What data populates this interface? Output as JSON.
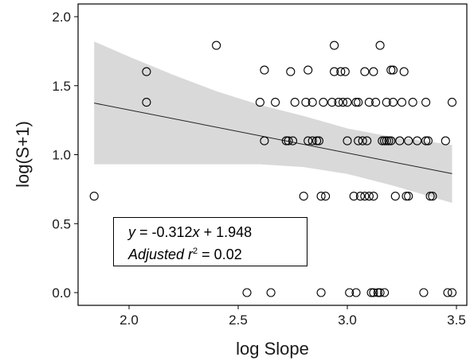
{
  "chart_data": {
    "type": "scatter",
    "xlabel": "log Slope",
    "ylabel": "log(S+1)",
    "xlim": [
      1.8,
      3.5
    ],
    "ylim": [
      -0.05,
      2.05
    ],
    "xticks": [
      "2.0",
      "2.5",
      "3.0",
      "3.5"
    ],
    "yticks": [
      "0.0",
      "0.5",
      "1.0",
      "1.5",
      "2.0"
    ],
    "grid": false,
    "points": [
      [
        1.84,
        0.699
      ],
      [
        2.08,
        1.602
      ],
      [
        2.08,
        1.38
      ],
      [
        2.4,
        1.792
      ],
      [
        2.54,
        0.0
      ],
      [
        2.6,
        1.38
      ],
      [
        2.62,
        1.613
      ],
      [
        2.62,
        1.1
      ],
      [
        2.65,
        0.0
      ],
      [
        2.67,
        1.38
      ],
      [
        2.72,
        1.1
      ],
      [
        2.73,
        1.1
      ],
      [
        2.74,
        1.602
      ],
      [
        2.75,
        1.1
      ],
      [
        2.76,
        1.38
      ],
      [
        2.8,
        0.699
      ],
      [
        2.81,
        1.38
      ],
      [
        2.82,
        1.1
      ],
      [
        2.82,
        1.613
      ],
      [
        2.84,
        1.38
      ],
      [
        2.84,
        1.1
      ],
      [
        2.86,
        1.1
      ],
      [
        2.87,
        1.1
      ],
      [
        2.88,
        0.0
      ],
      [
        2.88,
        0.699
      ],
      [
        2.89,
        1.38
      ],
      [
        2.9,
        0.699
      ],
      [
        2.93,
        1.38
      ],
      [
        2.94,
        1.602
      ],
      [
        2.94,
        1.792
      ],
      [
        2.96,
        1.38
      ],
      [
        2.97,
        1.602
      ],
      [
        2.98,
        1.38
      ],
      [
        2.99,
        1.602
      ],
      [
        3.0,
        1.38
      ],
      [
        3.0,
        1.1
      ],
      [
        3.01,
        0.0
      ],
      [
        3.03,
        0.699
      ],
      [
        3.04,
        0.0
      ],
      [
        3.04,
        1.38
      ],
      [
        3.05,
        1.38
      ],
      [
        3.05,
        1.1
      ],
      [
        3.06,
        0.699
      ],
      [
        3.07,
        1.1
      ],
      [
        3.08,
        1.602
      ],
      [
        3.08,
        0.699
      ],
      [
        3.09,
        1.1
      ],
      [
        3.1,
        0.699
      ],
      [
        3.1,
        1.38
      ],
      [
        3.11,
        0.0
      ],
      [
        3.12,
        0.0
      ],
      [
        3.12,
        1.602
      ],
      [
        3.12,
        0.699
      ],
      [
        3.13,
        1.38
      ],
      [
        3.14,
        0.0
      ],
      [
        3.15,
        0.0
      ],
      [
        3.15,
        1.792
      ],
      [
        3.16,
        1.1
      ],
      [
        3.17,
        0.0
      ],
      [
        3.17,
        1.1
      ],
      [
        3.18,
        1.38
      ],
      [
        3.18,
        1.1
      ],
      [
        3.19,
        1.1
      ],
      [
        3.2,
        1.613
      ],
      [
        3.2,
        1.1
      ],
      [
        3.21,
        1.613
      ],
      [
        3.21,
        1.38
      ],
      [
        3.22,
        0.699
      ],
      [
        3.24,
        1.1
      ],
      [
        3.25,
        1.38
      ],
      [
        3.26,
        1.602
      ],
      [
        3.27,
        0.699
      ],
      [
        3.28,
        1.1
      ],
      [
        3.28,
        0.699
      ],
      [
        3.3,
        1.38
      ],
      [
        3.32,
        1.1
      ],
      [
        3.35,
        0.0
      ],
      [
        3.36,
        1.38
      ],
      [
        3.36,
        1.1
      ],
      [
        3.37,
        1.1
      ],
      [
        3.38,
        0.699
      ],
      [
        3.39,
        0.699
      ],
      [
        3.45,
        1.1
      ],
      [
        3.46,
        0.0
      ],
      [
        3.48,
        1.38
      ],
      [
        3.48,
        0.0
      ]
    ],
    "fit_line": {
      "slope": -0.312,
      "intercept": 1.948,
      "x_range": [
        1.84,
        3.48
      ]
    },
    "confidence_band": {
      "x": [
        1.84,
        2.0,
        2.2,
        2.4,
        2.6,
        2.8,
        3.0,
        3.2,
        3.35,
        3.48
      ],
      "upper": [
        1.82,
        1.71,
        1.58,
        1.46,
        1.36,
        1.28,
        1.19,
        1.13,
        1.1,
        1.07
      ],
      "lower": [
        0.93,
        0.93,
        0.93,
        0.93,
        0.93,
        0.91,
        0.86,
        0.78,
        0.71,
        0.65
      ]
    },
    "annotation": {
      "line1_y": "y",
      "line1_rest": " = -0.312",
      "line1_x": "x",
      "line1_end": " + 1.948",
      "line2_label": "Adjusted r",
      "line2_sup": "2",
      "line2_value": " = 0.02"
    }
  }
}
